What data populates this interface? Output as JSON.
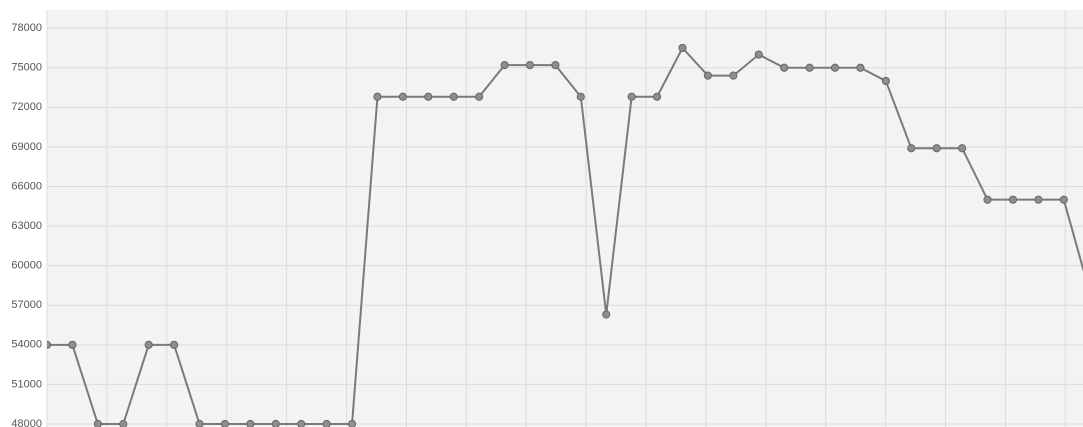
{
  "chart_data": {
    "type": "line",
    "categories": [
      null,
      null,
      null,
      null,
      null,
      null,
      null,
      null,
      null,
      null,
      null,
      null,
      null,
      null,
      null,
      null,
      null,
      null,
      null,
      null,
      null,
      null,
      null,
      null,
      null,
      null,
      null,
      null,
      null,
      null,
      null,
      null,
      null,
      null,
      null,
      null,
      null,
      null,
      null,
      null,
      null,
      null
    ],
    "series": [
      {
        "color": "#7a7a7a",
        "values": [
          54000,
          54000,
          48000,
          48000,
          54000,
          54000,
          48000,
          48000,
          48000,
          48000,
          48000,
          48000,
          48000,
          72800,
          72800,
          72800,
          72800,
          72800,
          75200,
          75200,
          75200,
          72800,
          56300,
          72800,
          72800,
          76500,
          74400,
          74400,
          76000,
          75000,
          75000,
          75000,
          75000,
          74000,
          68900,
          68900,
          68900,
          65000,
          65000,
          65000,
          65000,
          58100
        ]
      }
    ],
    "ylim": [
      48000,
      79300
    ],
    "yticks": [
      48000,
      51000,
      54000,
      57000,
      60000,
      63000,
      66000,
      69000,
      72000,
      75000,
      78000
    ],
    "grid": true
  }
}
